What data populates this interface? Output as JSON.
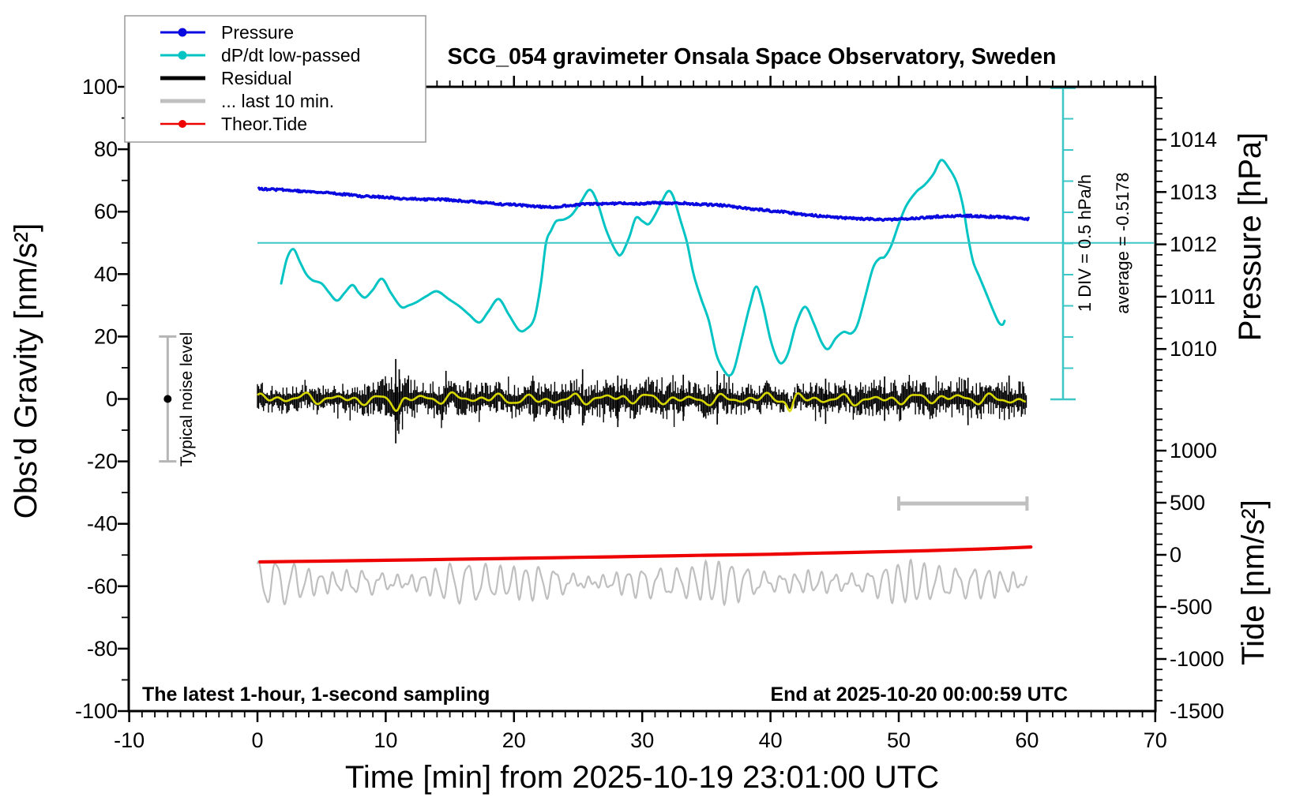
{
  "chart_data": {
    "type": "line",
    "title": "SCG_054 gravimeter Onsala Space Observatory, Sweden",
    "xlabel": "Time [min] from 2025-10-19 23:01:00 UTC",
    "ylabel_left": "Obs'd Gravity [nm/s²]",
    "ylabel_right_top": "Pressure [hPa]",
    "ylabel_right_bottom": "Tide [nm/s²]",
    "x_range": [
      -10,
      70
    ],
    "gravity_range": [
      -100,
      100
    ],
    "x_ticks": [
      -10,
      0,
      10,
      20,
      30,
      40,
      50,
      60,
      70
    ],
    "x_minor_step": 1,
    "gravity_ticks": [
      100,
      80,
      60,
      40,
      20,
      0,
      -20,
      -40,
      -60,
      -80,
      -100
    ],
    "gravity_minor_step": 10,
    "pressure_ticks": [
      1014,
      1013,
      1012,
      1011,
      1010
    ],
    "pressure_minor_step": 0.2,
    "tide_ticks": [
      1000,
      500,
      0,
      -500,
      -1000,
      -1500
    ],
    "tide_minor_step": 100,
    "grid": false,
    "legend_position": "top-left",
    "annotations": {
      "div_scale": "1 DIV = 0.5 hPa/h",
      "average": "average = -0.5178",
      "footer_left": "The latest 1-hour, 1-second sampling",
      "footer_right": "End at 2025-10-20 00:00:59 UTC"
    },
    "reference_line_gravity": 50,
    "noise_marker": {
      "t": -7,
      "center_gravity": 0,
      "half_range": 20,
      "label": "Typical noise level"
    },
    "last10_window": {
      "t_start": 50,
      "t_end": 60,
      "gravity_level": -33.5
    },
    "series": [
      {
        "name": "Pressure",
        "axis": "pressure",
        "color": "#0a0ae0",
        "marker": "circle",
        "points": [
          [
            0.05,
            1013.06
          ],
          [
            1,
            1013.05
          ],
          [
            2,
            1013.04
          ],
          [
            3,
            1013.02
          ],
          [
            4,
            1013.01
          ],
          [
            5,
            1012.99
          ],
          [
            6,
            1012.97
          ],
          [
            7,
            1012.95
          ],
          [
            8,
            1012.92
          ],
          [
            9,
            1012.91
          ],
          [
            10,
            1012.9
          ],
          [
            11,
            1012.88
          ],
          [
            12,
            1012.87
          ],
          [
            13,
            1012.86
          ],
          [
            14,
            1012.86
          ],
          [
            15,
            1012.85
          ],
          [
            16,
            1012.83
          ],
          [
            17,
            1012.81
          ],
          [
            18,
            1012.79
          ],
          [
            19,
            1012.77
          ],
          [
            20,
            1012.76
          ],
          [
            21,
            1012.74
          ],
          [
            22,
            1012.72
          ],
          [
            23,
            1012.71
          ],
          [
            24,
            1012.74
          ],
          [
            25,
            1012.76
          ],
          [
            26,
            1012.77
          ],
          [
            27,
            1012.78
          ],
          [
            28,
            1012.78
          ],
          [
            29,
            1012.78
          ],
          [
            30,
            1012.78
          ],
          [
            31,
            1012.79
          ],
          [
            32,
            1012.79
          ],
          [
            33,
            1012.79
          ],
          [
            34,
            1012.77
          ],
          [
            35,
            1012.76
          ],
          [
            36,
            1012.75
          ],
          [
            37,
            1012.72
          ],
          [
            38,
            1012.69
          ],
          [
            39,
            1012.67
          ],
          [
            40,
            1012.64
          ],
          [
            41,
            1012.62
          ],
          [
            42,
            1012.59
          ],
          [
            43,
            1012.56
          ],
          [
            44,
            1012.54
          ],
          [
            45,
            1012.52
          ],
          [
            46,
            1012.5
          ],
          [
            47,
            1012.49
          ],
          [
            48,
            1012.48
          ],
          [
            49,
            1012.47
          ],
          [
            50,
            1012.48
          ],
          [
            51,
            1012.49
          ],
          [
            52,
            1012.51
          ],
          [
            53,
            1012.53
          ],
          [
            54,
            1012.54
          ],
          [
            55,
            1012.55
          ],
          [
            56,
            1012.54
          ],
          [
            57,
            1012.53
          ],
          [
            58,
            1012.52
          ],
          [
            59,
            1012.51
          ],
          [
            60.25,
            1012.48
          ]
        ]
      },
      {
        "name": "dP/dt low-passed",
        "axis": "gravity",
        "color": "#00c3c3",
        "marker": "circle",
        "points": [
          [
            1.85,
            37
          ],
          [
            2.3,
            45
          ],
          [
            2.8,
            48
          ],
          [
            3.3,
            44
          ],
          [
            3.8,
            40
          ],
          [
            4.3,
            38
          ],
          [
            5.0,
            37
          ],
          [
            5.6,
            34
          ],
          [
            6.2,
            31.5
          ],
          [
            6.8,
            34
          ],
          [
            7.4,
            36.5
          ],
          [
            7.9,
            34
          ],
          [
            8.4,
            32.5
          ],
          [
            9.0,
            35
          ],
          [
            9.7,
            38.5
          ],
          [
            10.4,
            34
          ],
          [
            11.2,
            29.5
          ],
          [
            11.8,
            30
          ],
          [
            12.4,
            31
          ],
          [
            13.2,
            33
          ],
          [
            14.0,
            34.5
          ],
          [
            14.9,
            32
          ],
          [
            15.8,
            29.5
          ],
          [
            16.5,
            27
          ],
          [
            17.3,
            24.5
          ],
          [
            18.0,
            28
          ],
          [
            18.8,
            32
          ],
          [
            19.6,
            27
          ],
          [
            20.4,
            22
          ],
          [
            21.0,
            22.5
          ],
          [
            21.6,
            26
          ],
          [
            22.1,
            37
          ],
          [
            22.5,
            50
          ],
          [
            22.9,
            54
          ],
          [
            23.3,
            57
          ],
          [
            23.9,
            57.5
          ],
          [
            24.5,
            59
          ],
          [
            25.2,
            63
          ],
          [
            25.9,
            67
          ],
          [
            26.5,
            63
          ],
          [
            27.2,
            54
          ],
          [
            28.0,
            47
          ],
          [
            28.4,
            46.5
          ],
          [
            29.0,
            52
          ],
          [
            29.5,
            58
          ],
          [
            30.0,
            57
          ],
          [
            30.5,
            56
          ],
          [
            31.0,
            59
          ],
          [
            31.5,
            63
          ],
          [
            32.0,
            66.5
          ],
          [
            32.4,
            65
          ],
          [
            33.0,
            57
          ],
          [
            33.5,
            50
          ],
          [
            34.0,
            40
          ],
          [
            34.6,
            32
          ],
          [
            35.2,
            25
          ],
          [
            35.8,
            14
          ],
          [
            36.4,
            9
          ],
          [
            36.8,
            7.5
          ],
          [
            37.2,
            10
          ],
          [
            37.8,
            20
          ],
          [
            38.4,
            30
          ],
          [
            38.9,
            36
          ],
          [
            39.4,
            30
          ],
          [
            40.0,
            19
          ],
          [
            40.5,
            13
          ],
          [
            40.9,
            11.5
          ],
          [
            41.4,
            15
          ],
          [
            42.0,
            24
          ],
          [
            42.7,
            29.5
          ],
          [
            43.4,
            24
          ],
          [
            44.0,
            18
          ],
          [
            44.5,
            16
          ],
          [
            45.1,
            19.5
          ],
          [
            45.7,
            21.5
          ],
          [
            46.3,
            21
          ],
          [
            46.8,
            24
          ],
          [
            47.4,
            33
          ],
          [
            48.0,
            42
          ],
          [
            48.5,
            45
          ],
          [
            48.9,
            45.5
          ],
          [
            49.4,
            49
          ],
          [
            50.0,
            56
          ],
          [
            50.6,
            62
          ],
          [
            51.4,
            66.5
          ],
          [
            52.0,
            68.5
          ],
          [
            52.7,
            72
          ],
          [
            53.3,
            76.5
          ],
          [
            53.9,
            74
          ],
          [
            54.5,
            69.5
          ],
          [
            55.0,
            62
          ],
          [
            55.4,
            52
          ],
          [
            55.8,
            44
          ],
          [
            56.3,
            39
          ],
          [
            56.9,
            33
          ],
          [
            57.4,
            28
          ],
          [
            57.8,
            24.5
          ],
          [
            58.1,
            23.8
          ],
          [
            58.25,
            25
          ]
        ]
      },
      {
        "name": "Residual",
        "axis": "gravity",
        "color": "#000000",
        "noise": {
          "seed": 20251019,
          "t_start": 0,
          "t_end": 60,
          "envelope": [
            [
              0,
              4.5
            ],
            [
              2,
              4.8
            ],
            [
              4,
              4.5
            ],
            [
              6,
              4.8
            ],
            [
              8,
              5.0
            ],
            [
              9.5,
              5.5
            ],
            [
              10.3,
              9.0
            ],
            [
              10.8,
              13.0
            ],
            [
              11.3,
              10.0
            ],
            [
              11.8,
              7.5
            ],
            [
              12.5,
              6.0
            ],
            [
              13.5,
              5.0
            ],
            [
              14.5,
              6.5
            ],
            [
              15.5,
              5.5
            ],
            [
              16.5,
              6.0
            ],
            [
              17.5,
              5.2
            ],
            [
              19,
              5.4
            ],
            [
              20.5,
              5.8
            ],
            [
              22,
              6.0
            ],
            [
              23.5,
              6.8
            ],
            [
              25,
              6.0
            ],
            [
              26.5,
              6.2
            ],
            [
              28,
              6.8
            ],
            [
              29.5,
              7.0
            ],
            [
              31,
              6.2
            ],
            [
              32.5,
              6.4
            ],
            [
              34,
              5.4
            ],
            [
              35.5,
              6.0
            ],
            [
              37,
              5.6
            ],
            [
              38.5,
              5.2
            ],
            [
              40,
              5.0
            ],
            [
              41.3,
              3.6
            ],
            [
              41.8,
              3.4
            ],
            [
              42.5,
              5.0
            ],
            [
              44,
              6.0
            ],
            [
              45.5,
              5.6
            ],
            [
              47,
              5.8
            ],
            [
              48.5,
              6.0
            ],
            [
              50,
              6.4
            ],
            [
              51.5,
              5.8
            ],
            [
              53,
              6.2
            ],
            [
              54.5,
              6.6
            ],
            [
              56,
              6.0
            ],
            [
              57.5,
              6.4
            ],
            [
              59,
              6.0
            ],
            [
              60,
              5.6
            ]
          ],
          "spikes": [
            [
              10.78,
              12.8,
              -14.2
            ],
            [
              11.05,
              9.5,
              -8
            ],
            [
              14.7,
              9,
              -5
            ],
            [
              25.35,
              9.5,
              -8.5
            ],
            [
              28.1,
              7.5,
              -9
            ],
            [
              33.2,
              7.8,
              -7
            ],
            [
              35.85,
              9,
              -8.2
            ],
            [
              44.3,
              6.5,
              -8
            ],
            [
              48.9,
              7.2,
              -7
            ],
            [
              55.4,
              6.8,
              -8.4
            ],
            [
              58.6,
              7.5,
              -6.5
            ]
          ]
        },
        "smoothed_overlay_color": "#d6d600"
      },
      {
        "name": "... last 10 min.",
        "axis": "gravity",
        "color": "#bfbfbf",
        "center_gravity": -58.8,
        "t_start": 0,
        "t_end": 60
      },
      {
        "name": "Theor.Tide",
        "axis": "tide",
        "color": "#ee0000",
        "marker": "circle",
        "points": [
          [
            0.2,
            -68
          ],
          [
            5,
            -60.5
          ],
          [
            10,
            -52.5
          ],
          [
            15,
            -43.5
          ],
          [
            20,
            -34
          ],
          [
            25,
            -24.5
          ],
          [
            30,
            -14.5
          ],
          [
            35,
            -4
          ],
          [
            40,
            5
          ],
          [
            42,
            11
          ],
          [
            45,
            19
          ],
          [
            48,
            27
          ],
          [
            50,
            33
          ],
          [
            52,
            39
          ],
          [
            54,
            46
          ],
          [
            56,
            54
          ],
          [
            58,
            63
          ],
          [
            60.3,
            75
          ]
        ]
      }
    ]
  }
}
